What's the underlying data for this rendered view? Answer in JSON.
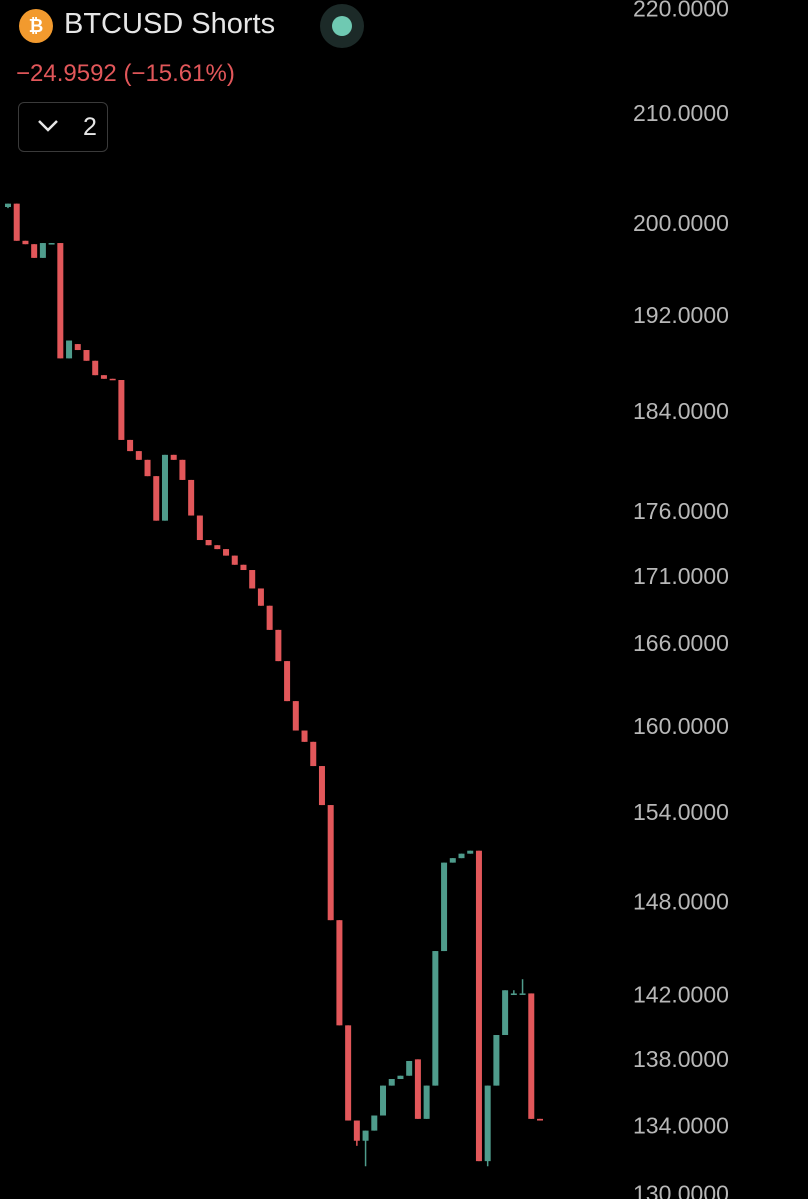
{
  "chart_data": {
    "type": "candlestick",
    "title": "BTCUSD Shorts",
    "change": "−24.9592 (−15.61%)",
    "indicator_count": 2,
    "log_scale": true,
    "grid": false,
    "up_color": "#4f9c8c",
    "down_color": "#e2575a",
    "ylim": [
      129.8,
      221
    ],
    "yticks": [
      {
        "value": 220,
        "label": "220.0000"
      },
      {
        "value": 210,
        "label": "210.0000"
      },
      {
        "value": 200,
        "label": "200.0000"
      },
      {
        "value": 192,
        "label": "192.0000"
      },
      {
        "value": 184,
        "label": "184.0000"
      },
      {
        "value": 176,
        "label": "176.0000"
      },
      {
        "value": 171,
        "label": "171.0000"
      },
      {
        "value": 166,
        "label": "166.0000"
      },
      {
        "value": 160,
        "label": "160.0000"
      },
      {
        "value": 154,
        "label": "154.0000"
      },
      {
        "value": 148,
        "label": "148.0000"
      },
      {
        "value": 142,
        "label": "142.0000"
      },
      {
        "value": 138,
        "label": "138.0000"
      },
      {
        "value": 134,
        "label": "134.0000"
      },
      {
        "value": 130,
        "label": "130.0000"
      }
    ],
    "ohlc": [
      [
        201.6,
        201.9,
        201.5,
        201.9
      ],
      [
        201.9,
        201.9,
        198.6,
        198.6
      ],
      [
        198.6,
        198.6,
        198.3,
        198.3
      ],
      [
        198.3,
        198.3,
        197.1,
        197.1
      ],
      [
        197.1,
        198.4,
        197.1,
        198.4
      ],
      [
        198.3,
        198.4,
        198.3,
        198.4
      ],
      [
        198.4,
        198.4,
        188.5,
        188.5
      ],
      [
        188.5,
        190.0,
        188.5,
        190.0
      ],
      [
        189.7,
        189.7,
        189.2,
        189.2
      ],
      [
        189.2,
        189.2,
        188.3,
        188.3
      ],
      [
        188.3,
        188.3,
        187.1,
        187.1
      ],
      [
        187.1,
        187.1,
        186.8,
        186.8
      ],
      [
        186.8,
        186.8,
        186.7,
        186.7
      ],
      [
        186.7,
        186.7,
        181.8,
        181.8
      ],
      [
        181.8,
        181.8,
        180.9,
        180.9
      ],
      [
        180.9,
        180.9,
        180.2,
        180.2
      ],
      [
        180.2,
        180.2,
        178.9,
        178.9
      ],
      [
        178.9,
        178.9,
        175.4,
        175.4
      ],
      [
        175.4,
        180.6,
        175.4,
        180.6
      ],
      [
        180.6,
        180.6,
        180.2,
        180.2
      ],
      [
        180.2,
        180.2,
        178.6,
        178.6
      ],
      [
        178.6,
        178.6,
        175.8,
        175.8
      ],
      [
        175.8,
        175.8,
        173.9,
        173.9
      ],
      [
        173.9,
        173.9,
        173.5,
        173.5
      ],
      [
        173.5,
        173.5,
        173.2,
        173.2
      ],
      [
        173.2,
        173.2,
        172.7,
        172.7
      ],
      [
        172.7,
        172.7,
        172.0,
        172.0
      ],
      [
        172.0,
        172.0,
        171.6,
        171.6
      ],
      [
        171.6,
        171.6,
        170.2,
        170.2
      ],
      [
        170.2,
        170.2,
        168.9,
        168.9
      ],
      [
        168.9,
        168.9,
        167.1,
        167.1
      ],
      [
        167.1,
        167.1,
        164.8,
        164.8
      ],
      [
        164.8,
        164.8,
        161.9,
        161.9
      ],
      [
        161.9,
        161.9,
        159.8,
        159.8
      ],
      [
        159.8,
        159.8,
        159.0,
        159.0
      ],
      [
        159.0,
        159.0,
        157.3,
        157.3
      ],
      [
        157.3,
        157.3,
        154.6,
        154.6
      ],
      [
        154.6,
        154.6,
        146.9,
        146.9
      ],
      [
        146.9,
        146.9,
        140.2,
        140.2
      ],
      [
        140.2,
        140.2,
        134.4,
        134.4
      ],
      [
        134.4,
        134.4,
        132.9,
        133.2
      ],
      [
        133.2,
        133.8,
        131.7,
        133.8
      ],
      [
        133.8,
        134.7,
        133.8,
        134.7
      ],
      [
        134.7,
        136.5,
        134.7,
        136.5
      ],
      [
        136.5,
        136.9,
        136.5,
        136.9
      ],
      [
        136.9,
        137.1,
        136.9,
        137.1
      ],
      [
        137.1,
        138.0,
        137.1,
        138.0
      ],
      [
        138.1,
        138.1,
        134.5,
        134.5
      ],
      [
        134.5,
        136.5,
        134.5,
        136.5
      ],
      [
        136.5,
        144.9,
        136.5,
        144.9
      ],
      [
        144.9,
        150.7,
        144.9,
        150.7
      ],
      [
        150.7,
        151.0,
        150.7,
        151.0
      ],
      [
        151.0,
        151.3,
        151.0,
        151.3
      ],
      [
        151.3,
        151.5,
        151.3,
        151.5
      ],
      [
        151.5,
        151.5,
        132.0,
        132.0
      ],
      [
        132.0,
        136.5,
        131.7,
        136.5
      ],
      [
        136.5,
        139.6,
        136.5,
        139.6
      ],
      [
        139.6,
        142.4,
        139.6,
        142.4
      ],
      [
        142.1,
        142.4,
        142.1,
        142.2
      ],
      [
        142.2,
        143.1,
        142.2,
        142.2
      ],
      [
        142.2,
        142.2,
        134.5,
        134.5
      ],
      [
        134.5,
        134.5,
        134.4,
        134.4
      ]
    ]
  }
}
